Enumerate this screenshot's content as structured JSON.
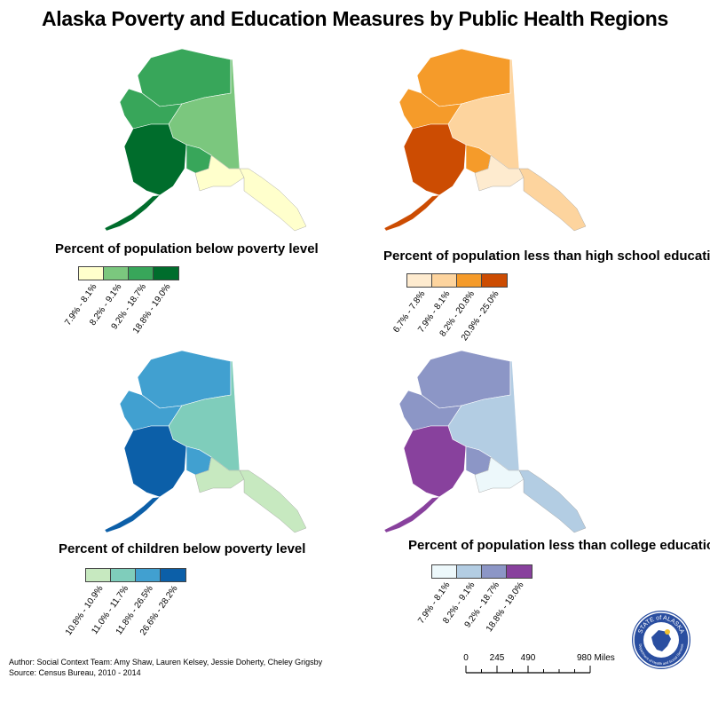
{
  "title": "Alaska Poverty and Education Measures by Public Health Regions",
  "maps": [
    {
      "name": "map-poverty",
      "legend_title": "Percent of population below poverty level",
      "colors": [
        "#ffffcc",
        "#7bc77e",
        "#38a65a",
        "#006d2c"
      ],
      "ranges": [
        "7.9% - 8.1%",
        "8.2% - 9.1%",
        "9.2% - 18.7%",
        "18.8% - 19.0%"
      ]
    },
    {
      "name": "map-less-than-high-school",
      "legend_title": "Percent of population less than high school education",
      "colors": [
        "#feebcf",
        "#fdd49e",
        "#f59b2a",
        "#cc4c02"
      ],
      "ranges": [
        "6.7% - 7.8%",
        "7.9% - 8.1%",
        "8.2% - 20.8%",
        "20.9% - 25.0%"
      ]
    },
    {
      "name": "map-children-poverty",
      "legend_title": "Percent of children below poverty level",
      "colors": [
        "#c7e9c0",
        "#7fcdbb",
        "#41a0d0",
        "#0c5fa8"
      ],
      "ranges": [
        "10.8% - 10.9%",
        "11.0% - 11.7%",
        "11.8% - 26.5%",
        "26.6% - 28.2%"
      ]
    },
    {
      "name": "map-less-than-college",
      "legend_title": "Percent of population less than college education",
      "colors": [
        "#edf8fb",
        "#b3cde3",
        "#8c96c6",
        "#88419d"
      ],
      "ranges": [
        "7.9% - 8.1%",
        "8.2% - 9.1%",
        "9.2% - 18.7%",
        "18.8% - 19.0%"
      ]
    }
  ],
  "credits": {
    "author": "Author: Social Context Team:  Amy Shaw, Lauren Kelsey, Jessie Doherty, Cheley Grigsby",
    "source": "Source: Census Bureau, 2010 - 2014"
  },
  "scale": {
    "labels": [
      "0",
      "245",
      "490",
      "980 Miles"
    ]
  },
  "logo": {
    "top": "STATE of ALASKA",
    "bottom": "Department of Health and Social Services"
  }
}
